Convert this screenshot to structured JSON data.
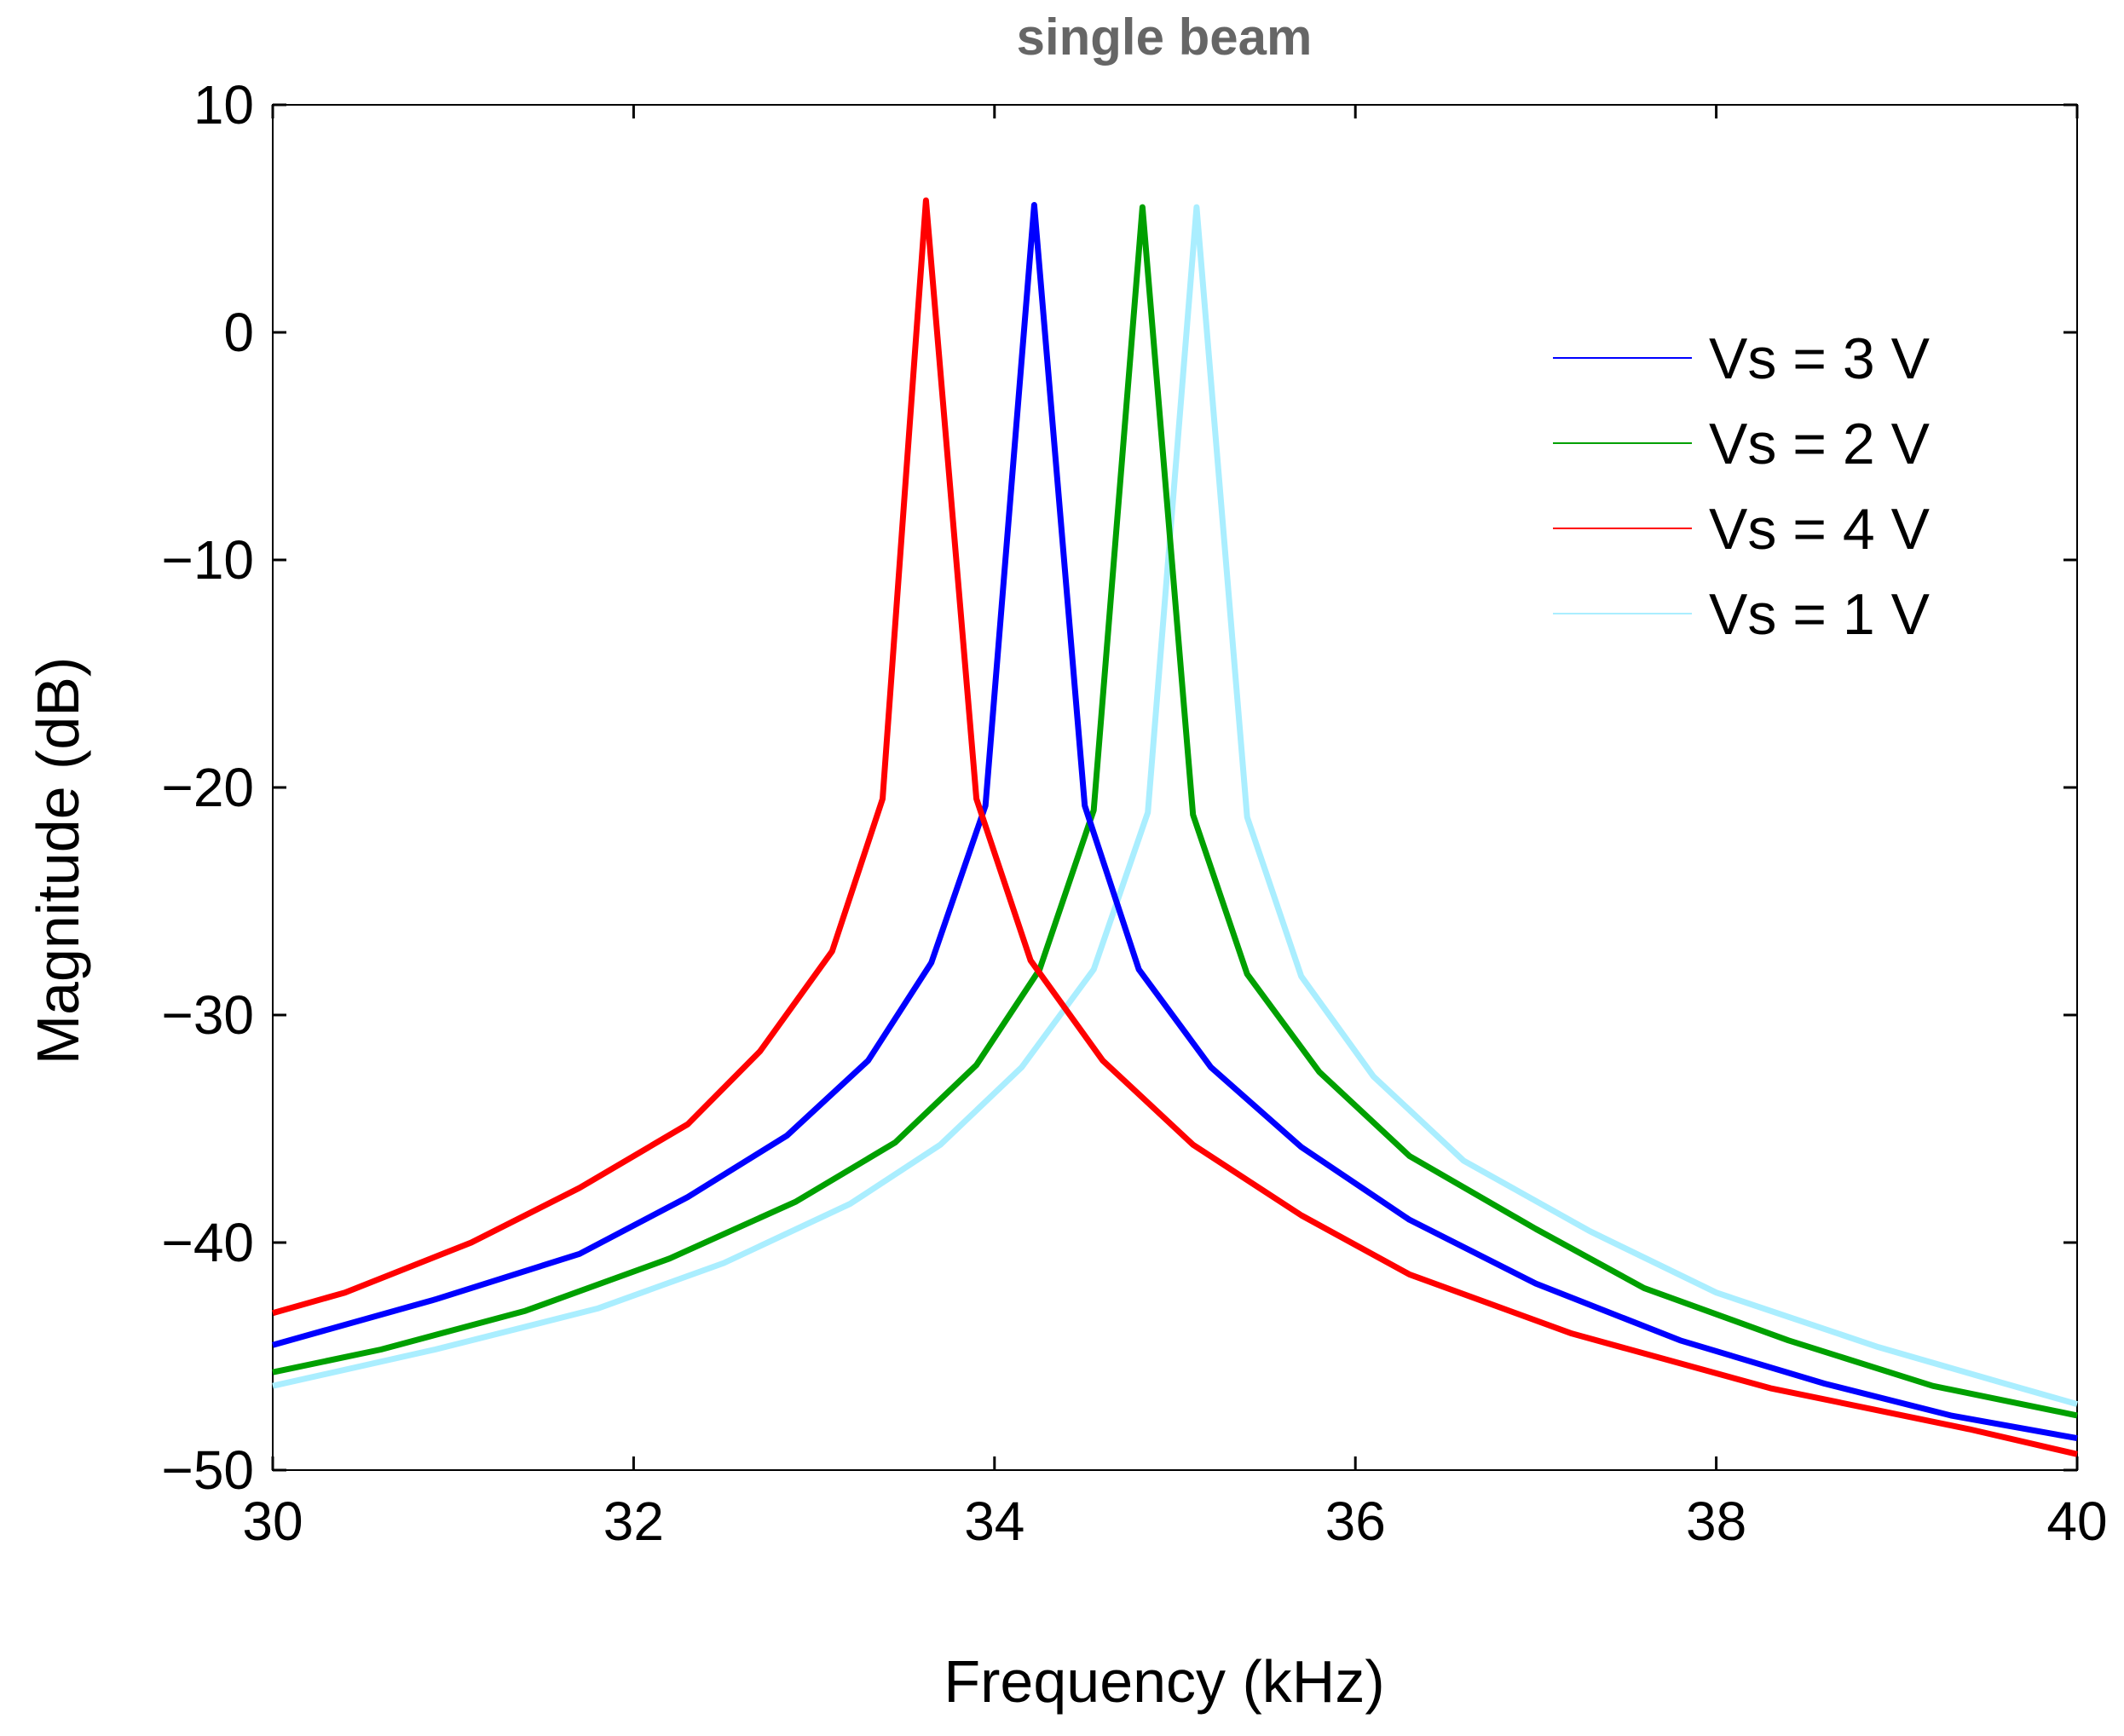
{
  "chart_data": {
    "type": "line",
    "title": "single beam",
    "xlabel": "Frequency  (kHz)",
    "ylabel": "Magnitude (dB)",
    "xlim": [
      30,
      40
    ],
    "ylim": [
      -50,
      10
    ],
    "xticks": [
      30,
      32,
      34,
      36,
      38,
      40
    ],
    "yticks": [
      10,
      0,
      -10,
      -20,
      -30,
      -40,
      -50
    ],
    "legend_position": "top-right",
    "series": [
      {
        "name": "Vs = 3 V",
        "color": "#0000ff",
        "x": [
          30,
          30.9,
          31.7,
          32.3,
          32.85,
          33.3,
          33.65,
          33.95,
          34.22,
          34.5,
          34.8,
          35.2,
          35.7,
          36.3,
          37,
          37.8,
          38.6,
          39.3,
          40
        ],
        "y": [
          -44.5,
          -42.5,
          -40.5,
          -38,
          -35.3,
          -32,
          -27.7,
          -20.8,
          5.6,
          -20.8,
          -28,
          -32.3,
          -35.8,
          -39,
          -41.8,
          -44.3,
          -46.2,
          -47.6,
          -48.6
        ]
      },
      {
        "name": "Vs = 2 V",
        "color": "#00a000",
        "x": [
          30,
          30.6,
          31.4,
          32.2,
          32.9,
          33.45,
          33.9,
          34.25,
          34.55,
          34.82,
          35.1,
          35.4,
          35.8,
          36.3,
          37,
          37.6,
          38.4,
          39.2,
          40
        ],
        "y": [
          -45.7,
          -44.7,
          -43,
          -40.7,
          -38.2,
          -35.6,
          -32.2,
          -28,
          -21,
          5.5,
          -21.2,
          -28.2,
          -32.5,
          -36.2,
          -39.4,
          -42,
          -44.3,
          -46.3,
          -47.6
        ]
      },
      {
        "name": "Vs = 4 V",
        "color": "#ff0000",
        "x": [
          30,
          30.4,
          31.1,
          31.7,
          32.3,
          32.7,
          33.1,
          33.38,
          33.62,
          33.9,
          34.2,
          34.6,
          35.1,
          35.7,
          36.3,
          37.2,
          38.3,
          39.4,
          40
        ],
        "y": [
          -43.1,
          -42.2,
          -40,
          -37.6,
          -34.8,
          -31.6,
          -27.2,
          -20.5,
          5.8,
          -20.5,
          -27.6,
          -32,
          -35.7,
          -38.8,
          -41.4,
          -44,
          -46.4,
          -48.2,
          -49.3
        ]
      },
      {
        "name": "Vs = 1 V",
        "color": "#aaeeff",
        "x": [
          30,
          30.9,
          31.8,
          32.5,
          33.2,
          33.7,
          34.15,
          34.55,
          34.85,
          35.12,
          35.4,
          35.7,
          36.1,
          36.6,
          37.3,
          38,
          38.9,
          39.6,
          40
        ],
        "y": [
          -46.3,
          -44.7,
          -42.9,
          -40.9,
          -38.3,
          -35.7,
          -32.3,
          -28,
          -21.1,
          5.5,
          -21.3,
          -28.3,
          -32.7,
          -36.4,
          -39.5,
          -42.2,
          -44.6,
          -46.2,
          -47.1
        ]
      }
    ]
  }
}
